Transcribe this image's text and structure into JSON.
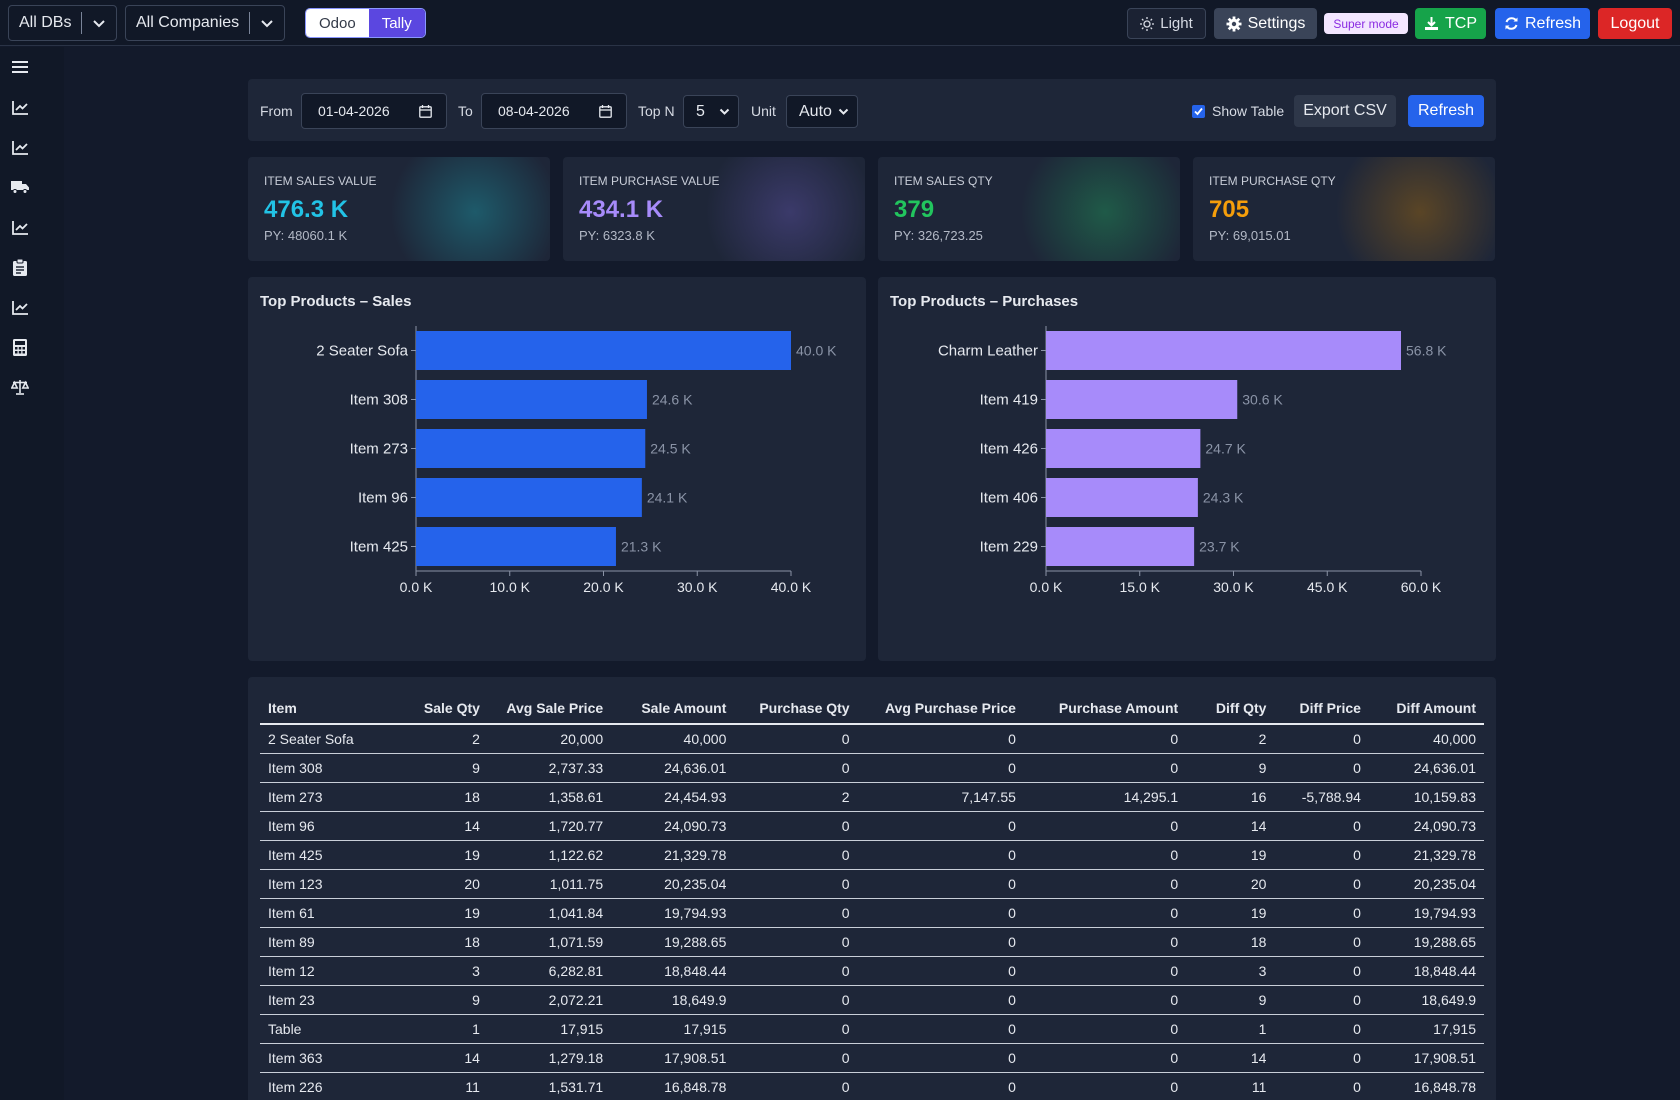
{
  "topbar": {
    "db_select": "All DBs",
    "company_select": "All Companies",
    "source_toggle": [
      "Odoo",
      "Tally"
    ],
    "source_active": "Tally",
    "light_label": "Light",
    "settings_label": "Settings",
    "super_mode_label": "Super mode",
    "tcp_label": "TCP",
    "refresh_label": "Refresh",
    "logout_label": "Logout"
  },
  "sidebar": {
    "icons": [
      "menu-icon",
      "chart-line-icon",
      "chart-line-icon",
      "truck-icon",
      "chart-line-icon",
      "clipboard-icon",
      "chart-line-icon",
      "calculator-icon",
      "scale-icon"
    ]
  },
  "filters": {
    "from_label": "From",
    "from_value": "01-04-2026",
    "to_label": "To",
    "to_value": "08-04-2026",
    "topn_label": "Top N",
    "topn_value": "5",
    "unit_label": "Unit",
    "unit_value": "Auto",
    "show_table_label": "Show Table",
    "show_table_checked": true,
    "export_label": "Export CSV",
    "refresh_label": "Refresh"
  },
  "kpis": [
    {
      "label": "ITEM SALES VALUE",
      "value": "476.3 K",
      "py": "PY: 48060.1 K",
      "color": "#22c3e6",
      "glow": "#1e5a6a"
    },
    {
      "label": "ITEM PURCHASE VALUE",
      "value": "434.1 K",
      "py": "PY: 6323.8 K",
      "color": "#a78bfa",
      "glow": "#3b3a6a"
    },
    {
      "label": "ITEM SALES QTY",
      "value": "379",
      "py": "PY: 326,723.25",
      "color": "#22c55e",
      "glow": "#1f5a48"
    },
    {
      "label": "ITEM PURCHASE QTY",
      "value": "705",
      "py": "PY: 69,015.01",
      "color": "#f59e0b",
      "glow": "#5a4526"
    }
  ],
  "chart_data": [
    {
      "type": "bar",
      "title": "Top Products – Sales",
      "orientation": "horizontal",
      "categories": [
        "2 Seater Sofa",
        "Item 308",
        "Item 273",
        "Item 96",
        "Item 425"
      ],
      "values": [
        40000,
        24636.01,
        24454.93,
        24090.73,
        21329.78
      ],
      "data_labels": [
        "40.0 K",
        "24.6 K",
        "24.5 K",
        "24.1 K",
        "21.3 K"
      ],
      "xlim": [
        0,
        40000
      ],
      "ticks": [
        0,
        10000,
        20000,
        30000,
        40000
      ],
      "tick_labels": [
        "0.0 K",
        "10.0 K",
        "20.0 K",
        "30.0 K",
        "40.0 K"
      ],
      "color": "#2563eb"
    },
    {
      "type": "bar",
      "title": "Top Products – Purchases",
      "orientation": "horizontal",
      "categories": [
        "Charm Leather",
        "Item 419",
        "Item 426",
        "Item 406",
        "Item 229"
      ],
      "values": [
        56800,
        30600,
        24700,
        24300,
        23700
      ],
      "data_labels": [
        "56.8 K",
        "30.6 K",
        "24.7 K",
        "24.3 K",
        "23.7 K"
      ],
      "xlim": [
        0,
        60000
      ],
      "ticks": [
        0,
        15000,
        30000,
        45000,
        60000
      ],
      "tick_labels": [
        "0.0 K",
        "15.0 K",
        "30.0 K",
        "45.0 K",
        "60.0 K"
      ],
      "color": "#a78bfa"
    }
  ],
  "table": {
    "headers": [
      "Item",
      "Sale Qty",
      "Avg Sale Price",
      "Sale Amount",
      "Purchase Qty",
      "Avg Purchase Price",
      "Purchase Amount",
      "Diff Qty",
      "Diff Price",
      "Diff Amount"
    ],
    "rows": [
      [
        "2 Seater Sofa",
        "2",
        "20,000",
        "40,000",
        "0",
        "0",
        "0",
        "2",
        "0",
        "40,000"
      ],
      [
        "Item 308",
        "9",
        "2,737.33",
        "24,636.01",
        "0",
        "0",
        "0",
        "9",
        "0",
        "24,636.01"
      ],
      [
        "Item 273",
        "18",
        "1,358.61",
        "24,454.93",
        "2",
        "7,147.55",
        "14,295.1",
        "16",
        "-5,788.94",
        "10,159.83"
      ],
      [
        "Item 96",
        "14",
        "1,720.77",
        "24,090.73",
        "0",
        "0",
        "0",
        "14",
        "0",
        "24,090.73"
      ],
      [
        "Item 425",
        "19",
        "1,122.62",
        "21,329.78",
        "0",
        "0",
        "0",
        "19",
        "0",
        "21,329.78"
      ],
      [
        "Item 123",
        "20",
        "1,011.75",
        "20,235.04",
        "0",
        "0",
        "0",
        "20",
        "0",
        "20,235.04"
      ],
      [
        "Item 61",
        "19",
        "1,041.84",
        "19,794.93",
        "0",
        "0",
        "0",
        "19",
        "0",
        "19,794.93"
      ],
      [
        "Item 89",
        "18",
        "1,071.59",
        "19,288.65",
        "0",
        "0",
        "0",
        "18",
        "0",
        "19,288.65"
      ],
      [
        "Item 12",
        "3",
        "6,282.81",
        "18,848.44",
        "0",
        "0",
        "0",
        "3",
        "0",
        "18,848.44"
      ],
      [
        "Item 23",
        "9",
        "2,072.21",
        "18,649.9",
        "0",
        "0",
        "0",
        "9",
        "0",
        "18,649.9"
      ],
      [
        "Table",
        "1",
        "17,915",
        "17,915",
        "0",
        "0",
        "0",
        "1",
        "0",
        "17,915"
      ],
      [
        "Item 363",
        "14",
        "1,279.18",
        "17,908.51",
        "0",
        "0",
        "0",
        "14",
        "0",
        "17,908.51"
      ],
      [
        "Item 226",
        "11",
        "1,531.71",
        "16,848.78",
        "0",
        "0",
        "0",
        "11",
        "0",
        "16,848.78"
      ]
    ]
  }
}
